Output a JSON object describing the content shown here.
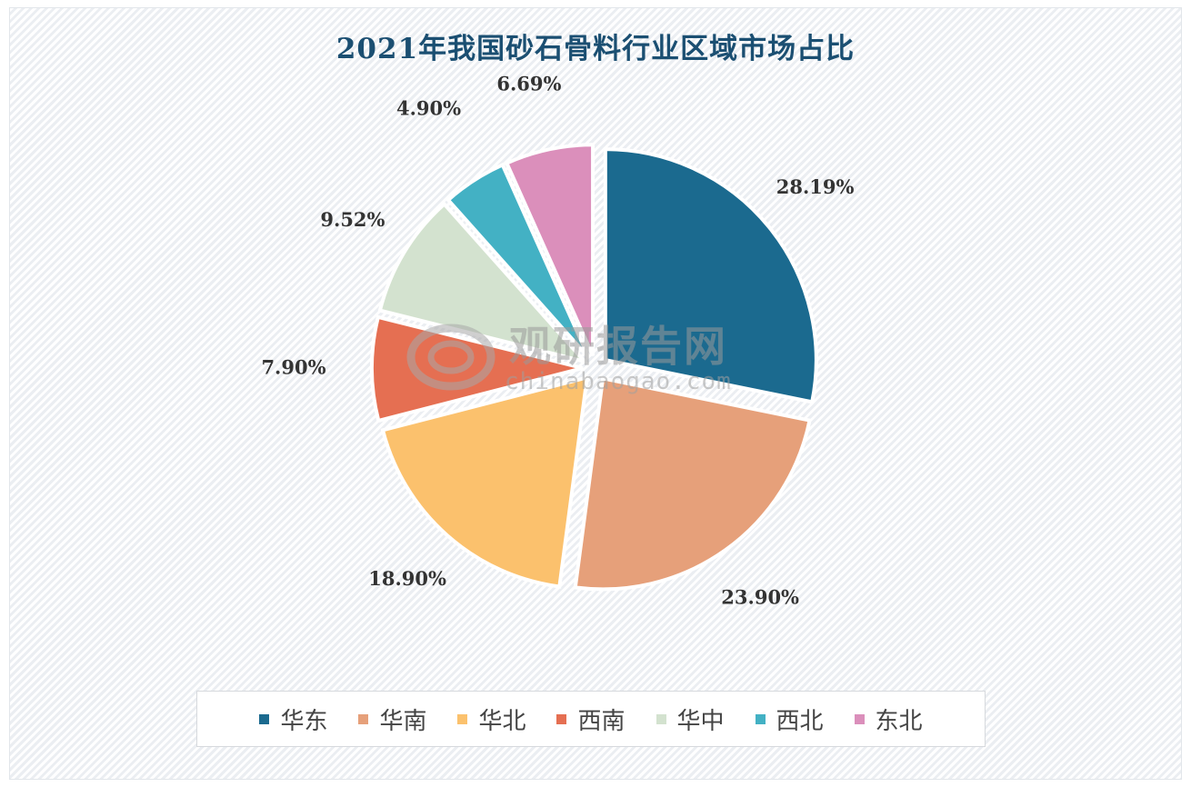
{
  "chart_data": {
    "type": "pie",
    "title": "2021年我国砂石骨料行业区域市场占比",
    "slices": [
      {
        "name": "华东",
        "value": 28.19,
        "label": "28.19%",
        "color": "#1b6a8f"
      },
      {
        "name": "华南",
        "value": 23.9,
        "label": "23.90%",
        "color": "#e6a07a"
      },
      {
        "name": "华北",
        "value": 18.9,
        "label": "18.90%",
        "color": "#fbc16d"
      },
      {
        "name": "西南",
        "value": 7.9,
        "label": "7.90%",
        "color": "#e56f52"
      },
      {
        "name": "华中",
        "value": 9.52,
        "label": "9.52%",
        "color": "#d3e2cf"
      },
      {
        "name": "西北",
        "value": 4.9,
        "label": "4.90%",
        "color": "#43b1c4"
      },
      {
        "name": "东北",
        "value": 6.69,
        "label": "6.69%",
        "color": "#db8fbb"
      }
    ],
    "legend_position": "bottom",
    "exploded": true
  },
  "watermark": {
    "text_cn": "观研报告网",
    "text_en": "chinabaogao.com"
  }
}
